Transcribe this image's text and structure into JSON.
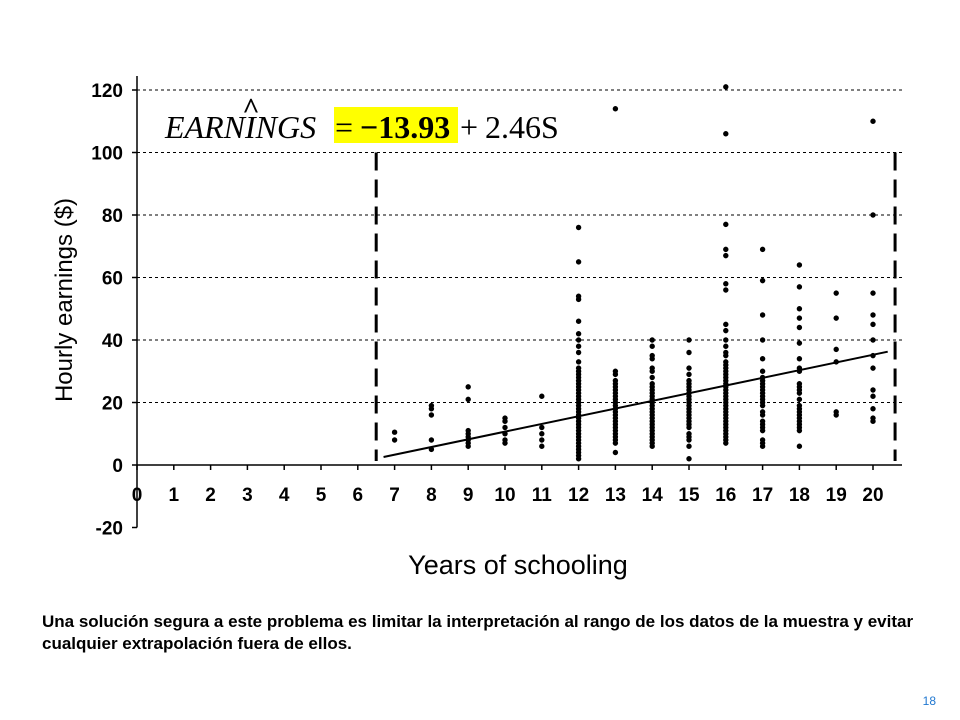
{
  "chart_data": {
    "type": "scatter",
    "title": "",
    "xlabel": "Years of schooling",
    "ylabel": "Hourly earnings ($)",
    "xlim": [
      0,
      20.5
    ],
    "ylim": [
      -20,
      120
    ],
    "x_ticks": [
      0,
      1,
      2,
      3,
      4,
      5,
      6,
      7,
      8,
      9,
      10,
      11,
      12,
      13,
      14,
      15,
      16,
      17,
      18,
      19,
      20
    ],
    "y_ticks": [
      -20,
      0,
      20,
      40,
      60,
      80,
      100,
      120
    ],
    "grid": "horizontal dashed",
    "regression": {
      "intercept": -13.93,
      "slope": 2.46,
      "x_range": [
        6.7,
        20.4
      ],
      "equation_lhs": "EARNINGS",
      "equation_hat": "^",
      "equation_eq": "=",
      "equation_intercept": "−13.93",
      "equation_plus": "+",
      "equation_slope_term": "2.46S",
      "highlight_color": "#ffff00"
    },
    "range_markers": [
      6.5,
      20.6
    ],
    "points": [
      [
        7,
        10.5
      ],
      [
        7,
        8
      ],
      [
        8,
        19
      ],
      [
        8,
        18
      ],
      [
        8,
        16
      ],
      [
        8,
        8
      ],
      [
        8,
        5
      ],
      [
        9,
        25
      ],
      [
        9,
        21
      ],
      [
        9,
        11
      ],
      [
        9,
        10
      ],
      [
        9,
        9
      ],
      [
        9,
        8
      ],
      [
        9,
        7
      ],
      [
        9,
        6
      ],
      [
        10,
        15
      ],
      [
        10,
        14
      ],
      [
        10,
        12
      ],
      [
        10,
        10
      ],
      [
        10,
        8
      ],
      [
        10,
        7
      ],
      [
        11,
        22
      ],
      [
        11,
        12
      ],
      [
        11,
        10
      ],
      [
        11,
        8
      ],
      [
        11,
        6
      ],
      [
        12,
        76
      ],
      [
        12,
        65
      ],
      [
        12,
        54
      ],
      [
        12,
        53
      ],
      [
        12,
        46
      ],
      [
        12,
        42
      ],
      [
        12,
        40
      ],
      [
        12,
        38
      ],
      [
        12,
        36
      ],
      [
        12,
        33
      ],
      [
        12,
        31
      ],
      [
        12,
        30
      ],
      [
        12,
        29
      ],
      [
        12,
        28
      ],
      [
        12,
        27
      ],
      [
        12,
        26
      ],
      [
        12,
        25
      ],
      [
        12,
        24
      ],
      [
        12,
        23
      ],
      [
        12,
        22
      ],
      [
        12,
        21
      ],
      [
        12,
        20
      ],
      [
        12,
        19
      ],
      [
        12,
        18
      ],
      [
        12,
        17
      ],
      [
        12,
        16
      ],
      [
        12,
        15
      ],
      [
        12,
        14
      ],
      [
        12,
        13
      ],
      [
        12,
        12
      ],
      [
        12,
        11
      ],
      [
        12,
        10
      ],
      [
        12,
        9
      ],
      [
        12,
        8
      ],
      [
        12,
        7
      ],
      [
        12,
        6
      ],
      [
        12,
        5
      ],
      [
        12,
        4
      ],
      [
        12,
        3
      ],
      [
        12,
        2
      ],
      [
        13,
        114
      ],
      [
        13,
        30
      ],
      [
        13,
        29
      ],
      [
        13,
        27
      ],
      [
        13,
        26
      ],
      [
        13,
        25
      ],
      [
        13,
        24
      ],
      [
        13,
        23
      ],
      [
        13,
        22
      ],
      [
        13,
        21
      ],
      [
        13,
        20
      ],
      [
        13,
        19
      ],
      [
        13,
        18
      ],
      [
        13,
        17
      ],
      [
        13,
        16
      ],
      [
        13,
        15
      ],
      [
        13,
        14
      ],
      [
        13,
        13
      ],
      [
        13,
        12
      ],
      [
        13,
        11
      ],
      [
        13,
        10
      ],
      [
        13,
        9
      ],
      [
        13,
        8
      ],
      [
        13,
        7
      ],
      [
        13,
        4
      ],
      [
        14,
        40
      ],
      [
        14,
        38
      ],
      [
        14,
        35
      ],
      [
        14,
        34
      ],
      [
        14,
        31
      ],
      [
        14,
        30
      ],
      [
        14,
        28
      ],
      [
        14,
        26
      ],
      [
        14,
        25
      ],
      [
        14,
        24
      ],
      [
        14,
        23
      ],
      [
        14,
        22
      ],
      [
        14,
        21
      ],
      [
        14,
        20
      ],
      [
        14,
        19
      ],
      [
        14,
        18
      ],
      [
        14,
        17
      ],
      [
        14,
        16
      ],
      [
        14,
        15
      ],
      [
        14,
        14
      ],
      [
        14,
        13
      ],
      [
        14,
        12
      ],
      [
        14,
        11
      ],
      [
        14,
        10
      ],
      [
        14,
        9
      ],
      [
        14,
        8
      ],
      [
        14,
        7
      ],
      [
        14,
        6
      ],
      [
        15,
        40
      ],
      [
        15,
        36
      ],
      [
        15,
        31
      ],
      [
        15,
        29
      ],
      [
        15,
        27
      ],
      [
        15,
        26
      ],
      [
        15,
        25
      ],
      [
        15,
        24
      ],
      [
        15,
        23
      ],
      [
        15,
        22
      ],
      [
        15,
        21
      ],
      [
        15,
        20
      ],
      [
        15,
        19
      ],
      [
        15,
        18
      ],
      [
        15,
        17
      ],
      [
        15,
        16
      ],
      [
        15,
        15
      ],
      [
        15,
        14
      ],
      [
        15,
        13
      ],
      [
        15,
        12
      ],
      [
        15,
        10
      ],
      [
        15,
        9
      ],
      [
        15,
        8
      ],
      [
        15,
        6
      ],
      [
        15,
        2
      ],
      [
        16,
        121
      ],
      [
        16,
        106
      ],
      [
        16,
        77
      ],
      [
        16,
        69
      ],
      [
        16,
        67
      ],
      [
        16,
        58
      ],
      [
        16,
        56
      ],
      [
        16,
        45
      ],
      [
        16,
        43
      ],
      [
        16,
        40
      ],
      [
        16,
        38
      ],
      [
        16,
        36
      ],
      [
        16,
        35
      ],
      [
        16,
        33
      ],
      [
        16,
        32
      ],
      [
        16,
        31
      ],
      [
        16,
        30
      ],
      [
        16,
        29
      ],
      [
        16,
        28
      ],
      [
        16,
        27
      ],
      [
        16,
        26
      ],
      [
        16,
        25
      ],
      [
        16,
        24
      ],
      [
        16,
        23
      ],
      [
        16,
        22
      ],
      [
        16,
        21
      ],
      [
        16,
        20
      ],
      [
        16,
        19
      ],
      [
        16,
        18
      ],
      [
        16,
        17
      ],
      [
        16,
        16
      ],
      [
        16,
        15
      ],
      [
        16,
        14
      ],
      [
        16,
        13
      ],
      [
        16,
        12
      ],
      [
        16,
        11
      ],
      [
        16,
        10
      ],
      [
        16,
        9
      ],
      [
        16,
        8
      ],
      [
        16,
        7
      ],
      [
        17,
        69
      ],
      [
        17,
        59
      ],
      [
        17,
        48
      ],
      [
        17,
        40
      ],
      [
        17,
        34
      ],
      [
        17,
        30
      ],
      [
        17,
        28
      ],
      [
        17,
        27
      ],
      [
        17,
        26
      ],
      [
        17,
        25
      ],
      [
        17,
        24
      ],
      [
        17,
        23
      ],
      [
        17,
        22
      ],
      [
        17,
        21
      ],
      [
        17,
        20
      ],
      [
        17,
        19
      ],
      [
        17,
        17
      ],
      [
        17,
        16
      ],
      [
        17,
        14
      ],
      [
        17,
        13
      ],
      [
        17,
        12
      ],
      [
        17,
        11
      ],
      [
        17,
        8
      ],
      [
        17,
        7
      ],
      [
        17,
        6
      ],
      [
        18,
        64
      ],
      [
        18,
        57
      ],
      [
        18,
        50
      ],
      [
        18,
        47
      ],
      [
        18,
        44
      ],
      [
        18,
        39
      ],
      [
        18,
        34
      ],
      [
        18,
        31
      ],
      [
        18,
        30
      ],
      [
        18,
        26
      ],
      [
        18,
        25
      ],
      [
        18,
        24
      ],
      [
        18,
        23
      ],
      [
        18,
        21
      ],
      [
        18,
        19
      ],
      [
        18,
        18
      ],
      [
        18,
        17
      ],
      [
        18,
        16
      ],
      [
        18,
        15
      ],
      [
        18,
        14
      ],
      [
        18,
        13
      ],
      [
        18,
        12
      ],
      [
        18,
        11
      ],
      [
        18,
        6
      ],
      [
        19,
        55
      ],
      [
        19,
        47
      ],
      [
        19,
        37
      ],
      [
        19,
        33
      ],
      [
        19,
        17
      ],
      [
        19,
        16
      ],
      [
        20,
        110
      ],
      [
        20,
        80
      ],
      [
        20,
        55
      ],
      [
        20,
        48
      ],
      [
        20,
        45
      ],
      [
        20,
        40
      ],
      [
        20,
        35
      ],
      [
        20,
        31
      ],
      [
        20,
        24
      ],
      [
        20,
        22
      ],
      [
        20,
        18
      ],
      [
        20,
        15
      ],
      [
        20,
        14
      ]
    ]
  },
  "caption": "Una solución segura a este problema es limitar la interpretación al rango de los datos de la muestra y evitar cualquier extrapolación fuera  de ellos.",
  "page_number": "18"
}
